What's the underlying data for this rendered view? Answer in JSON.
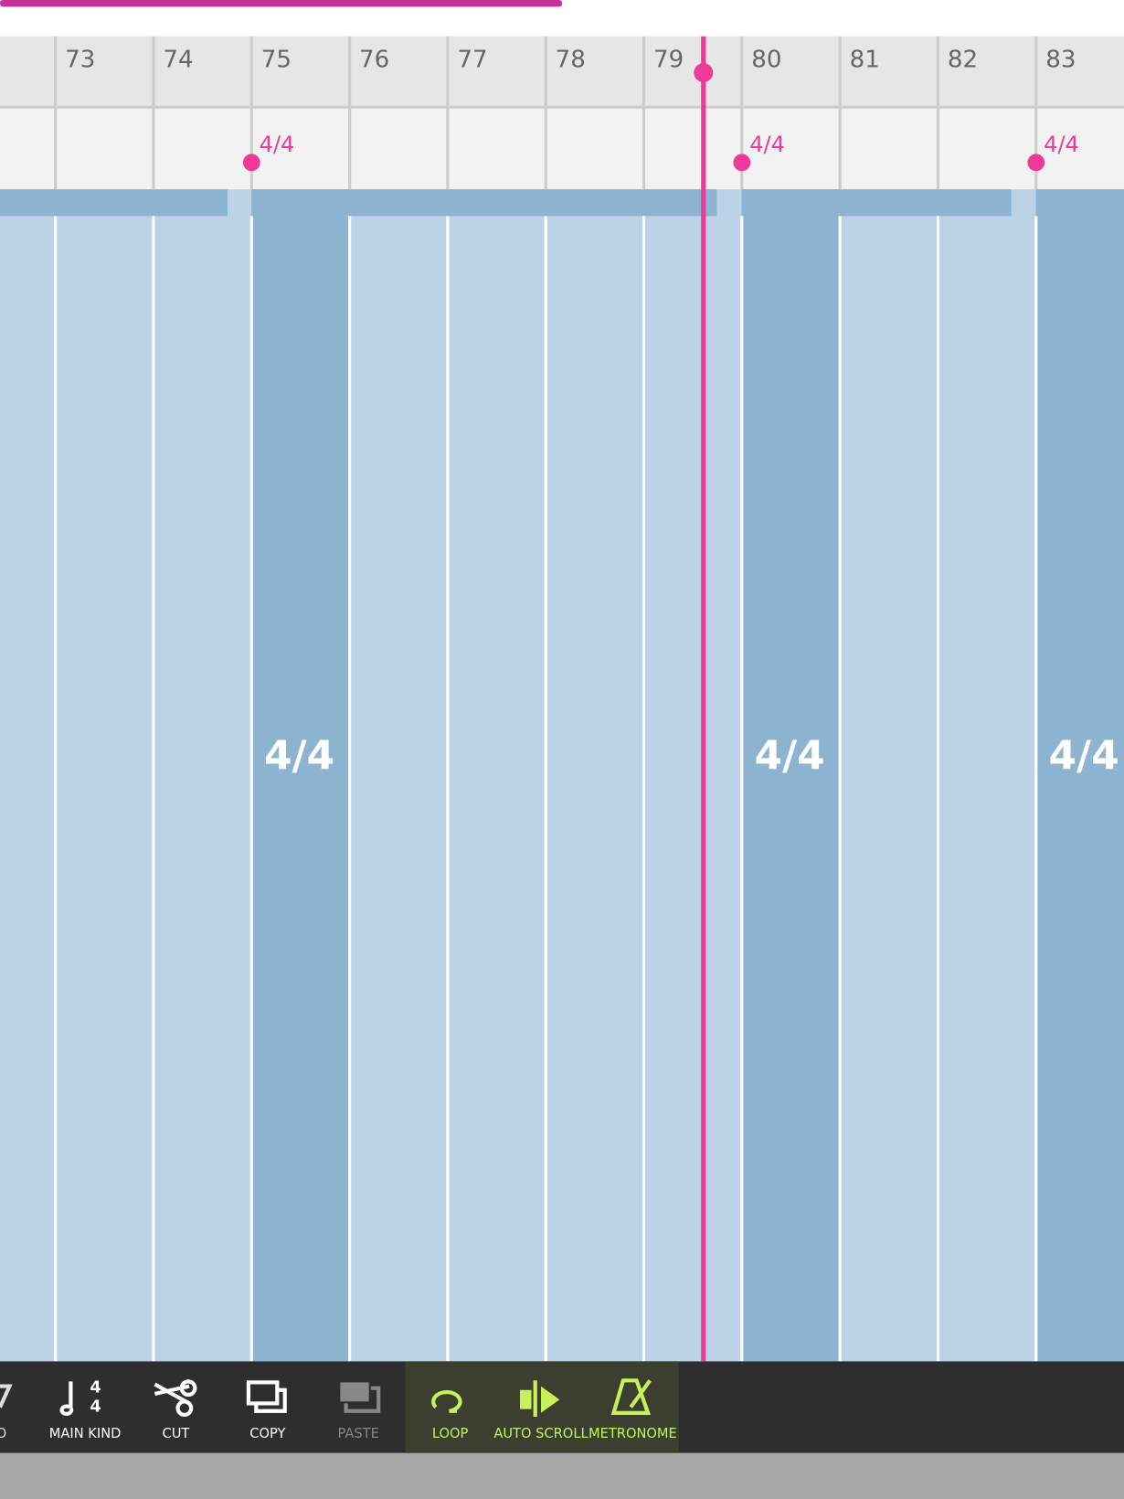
{
  "ruler": {
    "measures": [
      "73",
      "74",
      "75",
      "76",
      "77",
      "78",
      "79",
      "80",
      "81",
      "82",
      "83"
    ]
  },
  "time_signatures": [
    "4/4",
    "4/4",
    "4/4"
  ],
  "region_labels": [
    "4/4",
    "4/4",
    "4/4"
  ],
  "toolbar": {
    "items": [
      "DO",
      "MAIN KIND",
      "CUT",
      "COPY",
      "PASTE",
      "LOOP",
      "AUTO SCROLL",
      "METRONOME"
    ]
  }
}
